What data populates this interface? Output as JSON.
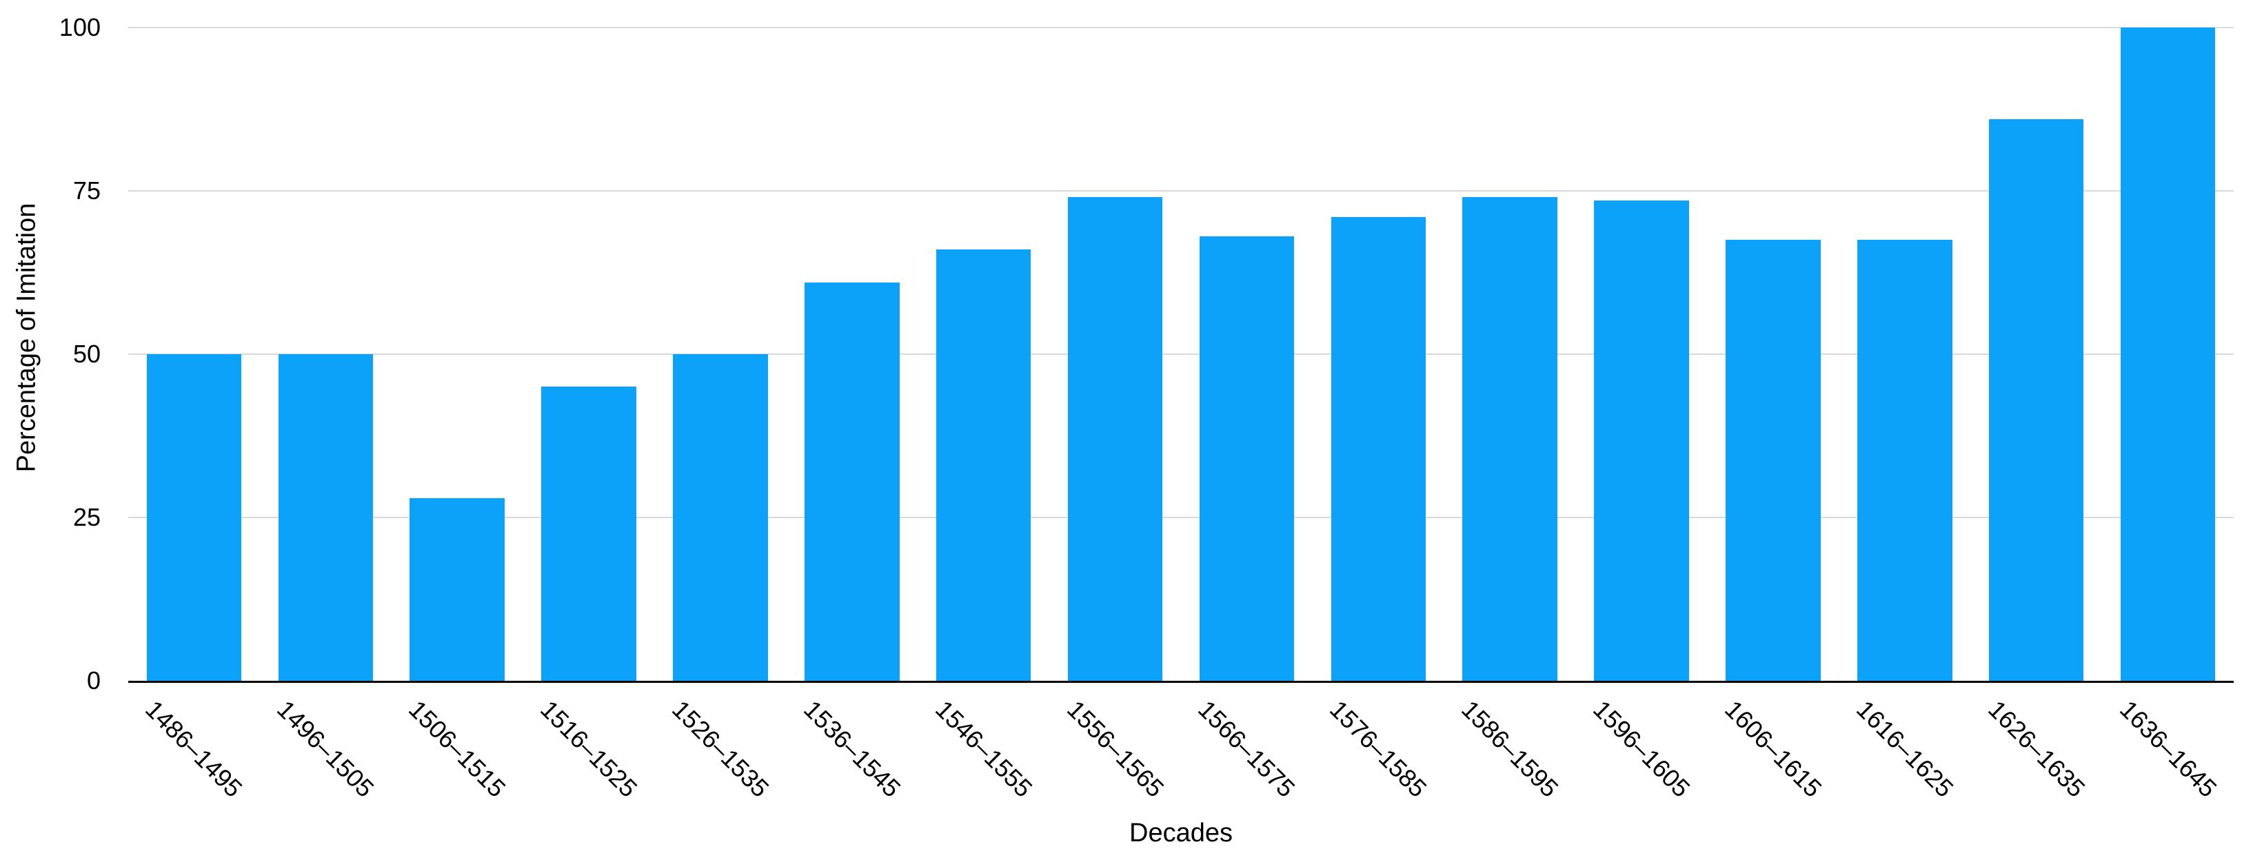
{
  "chart_data": {
    "type": "bar",
    "title": "",
    "categories": [
      "1486–1495",
      "1496–1505",
      "1506–1515",
      "1516–1525",
      "1526–1535",
      "1536–1545",
      "1546–1555",
      "1556–1565",
      "1566–1575",
      "1576–1585",
      "1586–1595",
      "1596–1605",
      "1606–1615",
      "1616–1625",
      "1626–1635",
      "1636–1645"
    ],
    "values": [
      50,
      50,
      28,
      45,
      50,
      61,
      66,
      74,
      68,
      71,
      74,
      73.5,
      67.5,
      67.5,
      86,
      100
    ],
    "xlabel": "Decades",
    "ylabel": "Percentage of Imitation",
    "ylim": [
      0,
      100
    ],
    "yticks": [
      0,
      25,
      50,
      75,
      100
    ],
    "grid": true,
    "legend": "none",
    "colors": {
      "bar": "#0da2fa",
      "gridline": "#d9d9d9",
      "axis_line": "#000000",
      "text": "#000000",
      "background": "#ffffff"
    }
  }
}
